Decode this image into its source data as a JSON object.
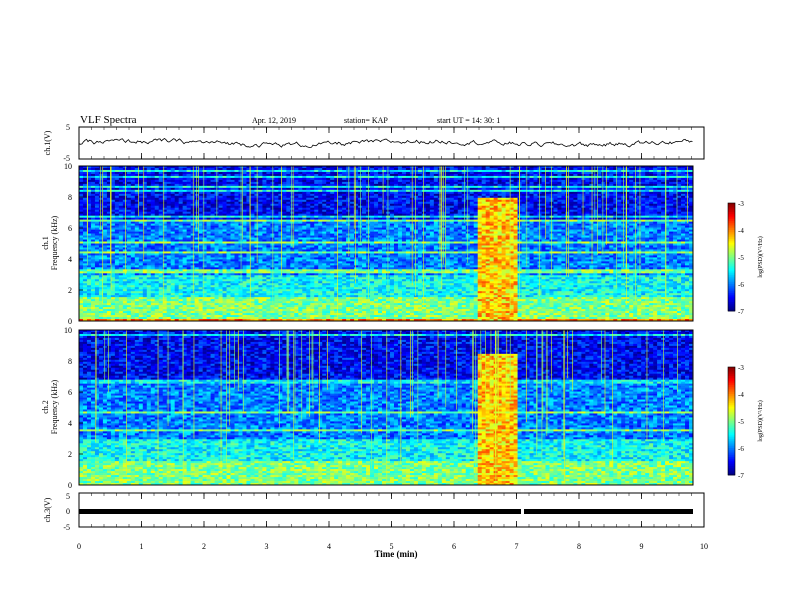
{
  "header": {
    "title": "VLF Spectra",
    "date": "Apr. 12, 2019",
    "station": "station= KAP",
    "start": "start UT =  14: 30: 1"
  },
  "chart_data": {
    "type": "heatmap",
    "time_axis": {
      "label": "Time (min)",
      "range": [
        0,
        10
      ],
      "ticks": [
        "0",
        "1",
        "2",
        "3",
        "4",
        "5",
        "6",
        "7",
        "8",
        "9",
        "10"
      ]
    },
    "colorbar": {
      "label": "log(PSD)(V²/Hz)",
      "range": [
        -7,
        -3
      ],
      "ticks": [
        "-3",
        "-4",
        "-5",
        "-6",
        "-7"
      ],
      "colormap": [
        "#000080",
        "#0000ff",
        "#0080ff",
        "#00ffff",
        "#80ff80",
        "#ffff00",
        "#ff8000",
        "#ff0000",
        "#800000",
        "#ffffff"
      ]
    },
    "panels": [
      {
        "id": "ch1-waveform",
        "ylabel": "ch.1(V)",
        "yrange": [
          -5,
          5
        ],
        "yticks": [
          "5",
          "-5"
        ],
        "type": "line",
        "level": 0
      },
      {
        "id": "ch1-spectrogram",
        "ylabel": "ch.1\nFrequency (kHz)",
        "yrange": [
          0,
          10
        ],
        "yticks": [
          "0",
          "2",
          "4",
          "6",
          "8",
          "10"
        ],
        "burst": {
          "t_start": 6.4,
          "t_end": 7.0,
          "f_max": 8.0
        },
        "type": "heatmap"
      },
      {
        "id": "ch2-spectrogram",
        "ylabel": "ch.2\nFrequency (kHz)",
        "yrange": [
          0,
          10
        ],
        "yticks": [
          "0",
          "2",
          "4",
          "6",
          "8",
          "10"
        ],
        "burst": {
          "t_start": 6.4,
          "t_end": 7.0,
          "f_max": 8.5
        },
        "type": "heatmap"
      },
      {
        "id": "ch3-waveform",
        "ylabel": "ch.3(V)",
        "yrange": [
          -5,
          5
        ],
        "yticks": [
          "5",
          "0",
          "-5"
        ],
        "type": "line",
        "level": 0,
        "gap_at": 7.1
      }
    ]
  }
}
